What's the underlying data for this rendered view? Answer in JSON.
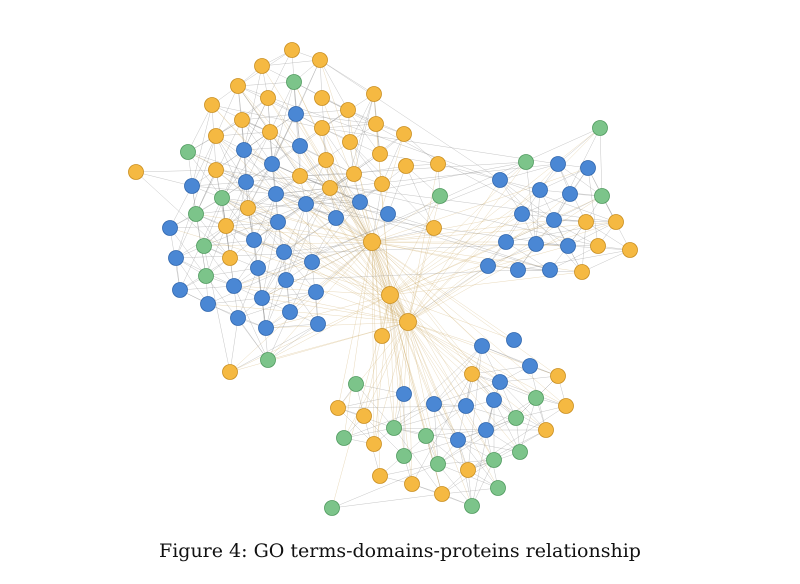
{
  "figure": {
    "caption": "Figure 4: GO terms-domains-proteins relationship"
  },
  "legend_colors": {
    "go_term": "#f5b942",
    "protein": "#4a87d4",
    "domain": "#7cc48a"
  },
  "node_kinds": [
    "go_term",
    "protein",
    "domain"
  ]
}
